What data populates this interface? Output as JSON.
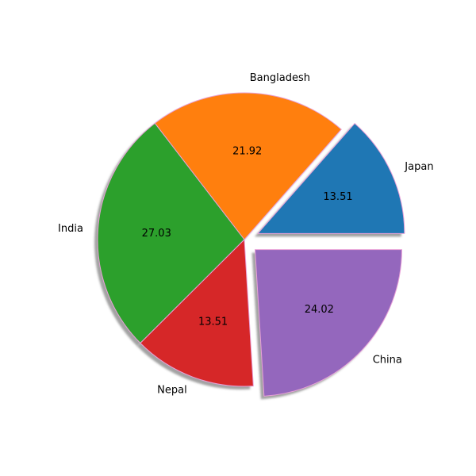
{
  "chart_data": {
    "type": "pie",
    "labels": [
      "Japan",
      "Bangladesh",
      "India",
      "Nepal",
      "China"
    ],
    "values": [
      13.51,
      21.92,
      27.03,
      13.51,
      24.02
    ],
    "value_labels": [
      "13.51",
      "21.92",
      "27.03",
      "13.51",
      "24.02"
    ],
    "colors": [
      "#1f77b4",
      "#ff7f0e",
      "#2ca02c",
      "#d62728",
      "#9467bd"
    ],
    "exploded": [
      "Japan",
      "China"
    ],
    "shadow": true,
    "edge_color": "#e8a0d8",
    "start_angle_deg": 0,
    "direction": "counterclockwise"
  }
}
